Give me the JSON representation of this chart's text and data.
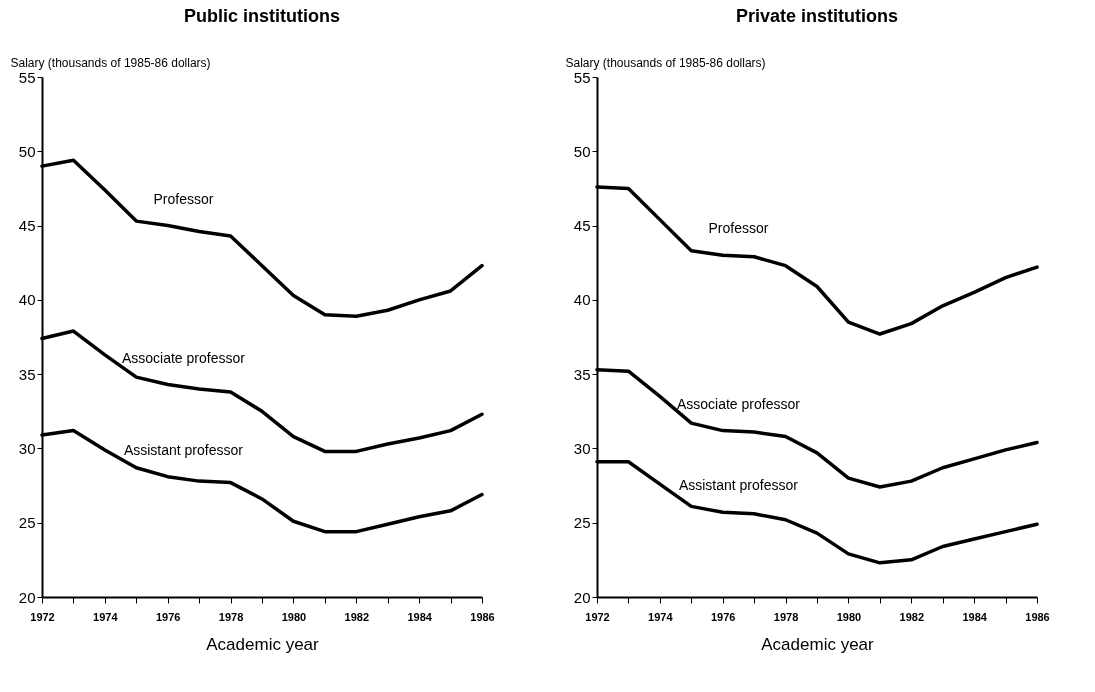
{
  "chart_data": [
    {
      "type": "line",
      "title": "Public institutions",
      "xlabel": "Academic year",
      "ylabel": "Salary (thousands of 1985-86 dollars)",
      "x": [
        1972,
        1973,
        1974,
        1975,
        1976,
        1977,
        1978,
        1979,
        1980,
        1981,
        1982,
        1983,
        1984,
        1985,
        1986
      ],
      "series": [
        {
          "name": "Professor",
          "color": "#000000",
          "values": [
            49.0,
            49.4,
            47.4,
            45.3,
            45.0,
            44.6,
            44.3,
            42.3,
            40.3,
            39.0,
            38.9,
            39.3,
            40.0,
            40.6,
            42.3
          ]
        },
        {
          "name": "Associate professor",
          "color": "#000000",
          "values": [
            37.4,
            37.9,
            36.3,
            34.8,
            34.3,
            34.0,
            33.8,
            32.5,
            30.8,
            29.8,
            29.8,
            30.3,
            30.7,
            31.2,
            32.3
          ]
        },
        {
          "name": "Assistant professor",
          "color": "#000000",
          "values": [
            30.9,
            31.2,
            29.9,
            28.7,
            28.1,
            27.8,
            27.7,
            26.6,
            25.1,
            24.4,
            24.4,
            24.9,
            25.4,
            25.8,
            26.9
          ]
        }
      ],
      "xlim": [
        1972,
        1986
      ],
      "xticks": [
        1972,
        {
          "value": 1973,
          "label": null
        },
        1974,
        {
          "value": 1975,
          "label": null
        },
        1976,
        {
          "value": 1977,
          "label": null
        },
        1978,
        {
          "value": 1979,
          "label": null
        },
        1980,
        {
          "value": 1981,
          "label": null
        },
        1982,
        {
          "value": 1983,
          "label": null
        },
        1984,
        {
          "value": 1985,
          "label": null
        },
        1986
      ],
      "ylim": [
        20,
        55
      ],
      "yticks": [
        20,
        25,
        30,
        35,
        40,
        45,
        50,
        55
      ],
      "grid": false,
      "legend": false,
      "marker": "none",
      "line_style": "solid"
    },
    {
      "type": "line",
      "title": "Private institutions",
      "xlabel": "Academic year",
      "ylabel": "Salary (thousands of 1985-86 dollars)",
      "x": [
        1972,
        1973,
        1974,
        1975,
        1976,
        1977,
        1978,
        1979,
        1980,
        1981,
        1982,
        1983,
        1984,
        1985,
        1986
      ],
      "series": [
        {
          "name": "Professor",
          "color": "#000000",
          "values": [
            47.6,
            47.5,
            45.4,
            43.3,
            43.0,
            42.9,
            42.3,
            40.9,
            38.5,
            37.7,
            38.4,
            39.6,
            40.5,
            41.5,
            42.2
          ]
        },
        {
          "name": "Associate professor",
          "color": "#000000",
          "values": [
            35.3,
            35.2,
            33.5,
            31.7,
            31.2,
            31.1,
            30.8,
            29.7,
            28.0,
            27.4,
            27.8,
            28.7,
            29.3,
            29.9,
            30.4
          ]
        },
        {
          "name": "Assistant professor",
          "color": "#000000",
          "values": [
            29.1,
            29.1,
            27.6,
            26.1,
            25.7,
            25.6,
            25.2,
            24.3,
            22.9,
            22.3,
            22.5,
            23.4,
            23.9,
            24.4,
            24.9
          ]
        }
      ],
      "xlim": [
        1972,
        1986
      ],
      "xticks": [
        1972,
        {
          "value": 1973,
          "label": null
        },
        1974,
        {
          "value": 1975,
          "label": null
        },
        1976,
        {
          "value": 1977,
          "label": null
        },
        1978,
        {
          "value": 1979,
          "label": null
        },
        1980,
        {
          "value": 1981,
          "label": null
        },
        1982,
        {
          "value": 1983,
          "label": null
        },
        1984,
        {
          "value": 1985,
          "label": null
        },
        1986
      ],
      "ylim": [
        20,
        55
      ],
      "yticks": [
        20,
        25,
        30,
        35,
        40,
        45,
        50,
        55
      ],
      "grid": false,
      "legend": false,
      "marker": "none",
      "line_style": "solid"
    }
  ]
}
